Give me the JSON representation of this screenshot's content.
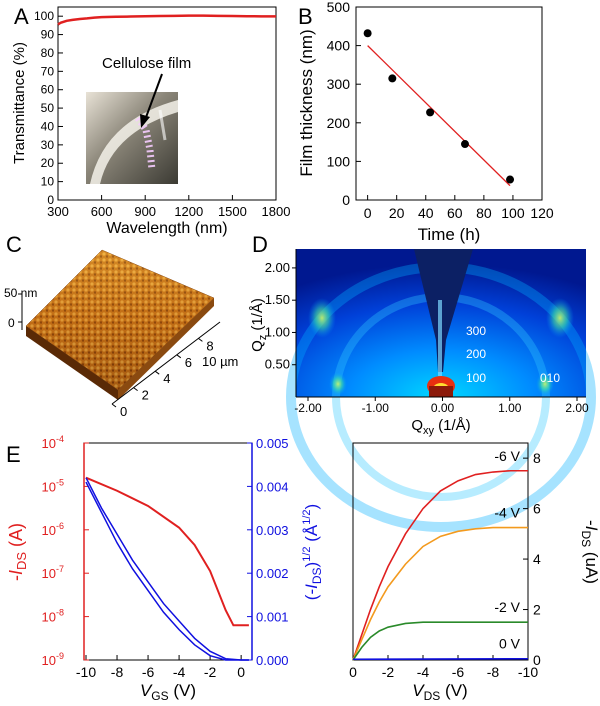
{
  "panel_labels": [
    "A",
    "B",
    "C",
    "D",
    "E"
  ],
  "colors": {
    "red": "#e02020",
    "blue": "#1010e0",
    "orange": "#f39a1e",
    "green": "#2a8a2a",
    "black": "#000000"
  },
  "chart_data": [
    {
      "panel": "A",
      "type": "line",
      "xlabel": "Wavelength (nm)",
      "ylabel": "Transmittance (%)",
      "xlim": [
        300,
        1800
      ],
      "ylim": [
        0,
        105
      ],
      "xticks": [
        "300",
        "600",
        "900",
        "1200",
        "1500",
        "1800"
      ],
      "yticks": [
        "0",
        "10",
        "20",
        "30",
        "40",
        "50",
        "60",
        "70",
        "80",
        "90",
        "100"
      ],
      "annotation": "Cellulose film",
      "series": [
        {
          "color": "#e02020",
          "x": [
            300,
            320,
            360,
            400,
            450,
            500,
            550,
            600,
            700,
            800,
            900,
            1000,
            1100,
            1200,
            1300,
            1400,
            1500,
            1600,
            1700,
            1800
          ],
          "y": [
            95.5,
            96.5,
            97.5,
            98.0,
            98.5,
            98.8,
            99.2,
            99.5,
            99.7,
            99.8,
            100.0,
            100.1,
            100.2,
            100.3,
            100.3,
            100.2,
            100.1,
            100.0,
            99.9,
            99.9
          ]
        }
      ]
    },
    {
      "panel": "B",
      "type": "scatter",
      "xlabel": "Time (h)",
      "ylabel": "Film thickness (nm)",
      "xlim": [
        -8,
        120
      ],
      "ylim": [
        0,
        500
      ],
      "xticks": [
        "0",
        "20",
        "40",
        "60",
        "80",
        "100",
        "120"
      ],
      "yticks": [
        "0",
        "100",
        "200",
        "300",
        "400",
        "500"
      ],
      "points": {
        "x": [
          0,
          17,
          43,
          67,
          98
        ],
        "y": [
          432,
          315,
          227,
          145,
          53
        ]
      },
      "fit_line": {
        "x": [
          0,
          98
        ],
        "y": [
          400,
          37
        ]
      }
    },
    {
      "panel": "C",
      "type": "surface",
      "z_labels": [
        "50 nm",
        "0"
      ],
      "x_ticks": [
        "0",
        "2",
        "4",
        "6",
        "8"
      ],
      "x_unit": "10 µm"
    },
    {
      "panel": "D",
      "type": "heatmap",
      "xlabel_main": "Q",
      "xlabel_sub": "xy",
      "xlabel_tail": " (1/Å)",
      "ylabel_main": "Q",
      "ylabel_sub": "z",
      "ylabel_tail": " (1/Å)",
      "xticks": [
        "-2.00",
        "-1.00",
        "0.00",
        "1.00",
        "2.00"
      ],
      "yticks": [
        "2.00",
        "1.50",
        "1.00",
        "0.50"
      ],
      "peaks": [
        "300",
        "200",
        "100",
        "010"
      ]
    },
    {
      "panel": "E-left",
      "type": "line",
      "xlabel_main": "V",
      "xlabel_sub": "GS",
      "xlabel_tail": " (V)",
      "xticks": [
        "-10",
        "-8",
        "-6",
        "-4",
        "-2",
        "0"
      ],
      "y_left_ticks": [
        "10",
        "10",
        "10",
        "10",
        "10",
        "10"
      ],
      "y_left_exps": [
        "-4",
        "-5",
        "-6",
        "-7",
        "-8",
        "-9"
      ],
      "y_right_ticks": [
        "0.005",
        "0.004",
        "0.003",
        "0.002",
        "0.001",
        "0.000"
      ],
      "ylabel_left_pre": "-",
      "ylabel_left_main": "I",
      "ylabel_left_sub": "DS",
      "ylabel_left_tail": " (A)",
      "ylabel_right_pre": "(-",
      "ylabel_right_main": "I",
      "ylabel_right_sub": "DS",
      "ylabel_right_tail": ")",
      "ylabel_right_exp": "1/2",
      "ylabel_right_unit": " (Å",
      "ylabel_right_unit_exp": "1/2",
      "ylabel_right_close": ")",
      "series": [
        {
          "axis": "left-log",
          "color": "#e02020",
          "x": [
            -10,
            -8,
            -6,
            -4,
            -3,
            -2,
            -1.5,
            -1,
            -0.5,
            0,
            0.5
          ],
          "y": [
            -4.8,
            -5.1,
            -5.45,
            -5.95,
            -6.35,
            -6.95,
            -7.4,
            -7.85,
            -8.2,
            -8.2,
            -8.2
          ]
        },
        {
          "axis": "right",
          "color": "#1010e0",
          "x": [
            -10,
            -9,
            -8,
            -7,
            -6,
            -5,
            -4,
            -3,
            -2,
            -1,
            0,
            0.5
          ],
          "y": [
            0.0042,
            0.0035,
            0.0029,
            0.0023,
            0.0018,
            0.0013,
            0.0009,
            0.0005,
            0.0002,
            3e-05,
            0.0,
            0.0
          ]
        },
        {
          "axis": "right",
          "color": "#1010e0",
          "x": [
            -10,
            -9,
            -8,
            -7,
            -6,
            -5,
            -4,
            -3,
            -2,
            -1,
            0,
            0.5
          ],
          "y": [
            0.0041,
            0.0034,
            0.0027,
            0.0021,
            0.0016,
            0.0011,
            0.0007,
            0.00035,
            0.0001,
            0.0,
            0.0,
            0.0
          ]
        }
      ]
    },
    {
      "panel": "E-right",
      "type": "line",
      "xlabel_main": "V",
      "xlabel_sub": "DS",
      "xlabel_tail": " (V)",
      "ylabel_pre": "-",
      "ylabel_main": "I",
      "ylabel_sub": "DS",
      "ylabel_tail": " (uA)",
      "xticks": [
        "0",
        "-2",
        "-4",
        "-6",
        "-8",
        "-10"
      ],
      "yticks": [
        "0",
        "2",
        "4",
        "6",
        "8"
      ],
      "xlim": [
        0,
        -10
      ],
      "ylim": [
        0,
        8.6
      ],
      "series": [
        {
          "name": "-6 V",
          "color": "#e02020",
          "x": [
            0,
            -0.5,
            -1,
            -1.5,
            -2,
            -3,
            -4,
            -5,
            -6,
            -7,
            -8,
            -9,
            -10
          ],
          "y": [
            0,
            1.0,
            2.0,
            2.9,
            3.7,
            5.0,
            6.0,
            6.7,
            7.1,
            7.35,
            7.45,
            7.5,
            7.5
          ]
        },
        {
          "name": "-4 V",
          "color": "#f39a1e",
          "x": [
            0,
            -0.5,
            -1,
            -1.5,
            -2,
            -3,
            -4,
            -5,
            -6,
            -7,
            -8,
            -9,
            -10
          ],
          "y": [
            0,
            0.8,
            1.6,
            2.3,
            2.9,
            3.8,
            4.5,
            4.9,
            5.1,
            5.2,
            5.25,
            5.25,
            5.25
          ]
        },
        {
          "name": "-2 V",
          "color": "#2a8a2a",
          "x": [
            0,
            -0.5,
            -1,
            -1.5,
            -2,
            -3,
            -4,
            -5,
            -6,
            -8,
            -10
          ],
          "y": [
            0,
            0.5,
            0.9,
            1.15,
            1.3,
            1.45,
            1.5,
            1.5,
            1.5,
            1.5,
            1.5
          ]
        },
        {
          "name": "0 V",
          "color": "#1010e0",
          "x": [
            0,
            -10
          ],
          "y": [
            0.03,
            0.05
          ]
        }
      ]
    }
  ]
}
